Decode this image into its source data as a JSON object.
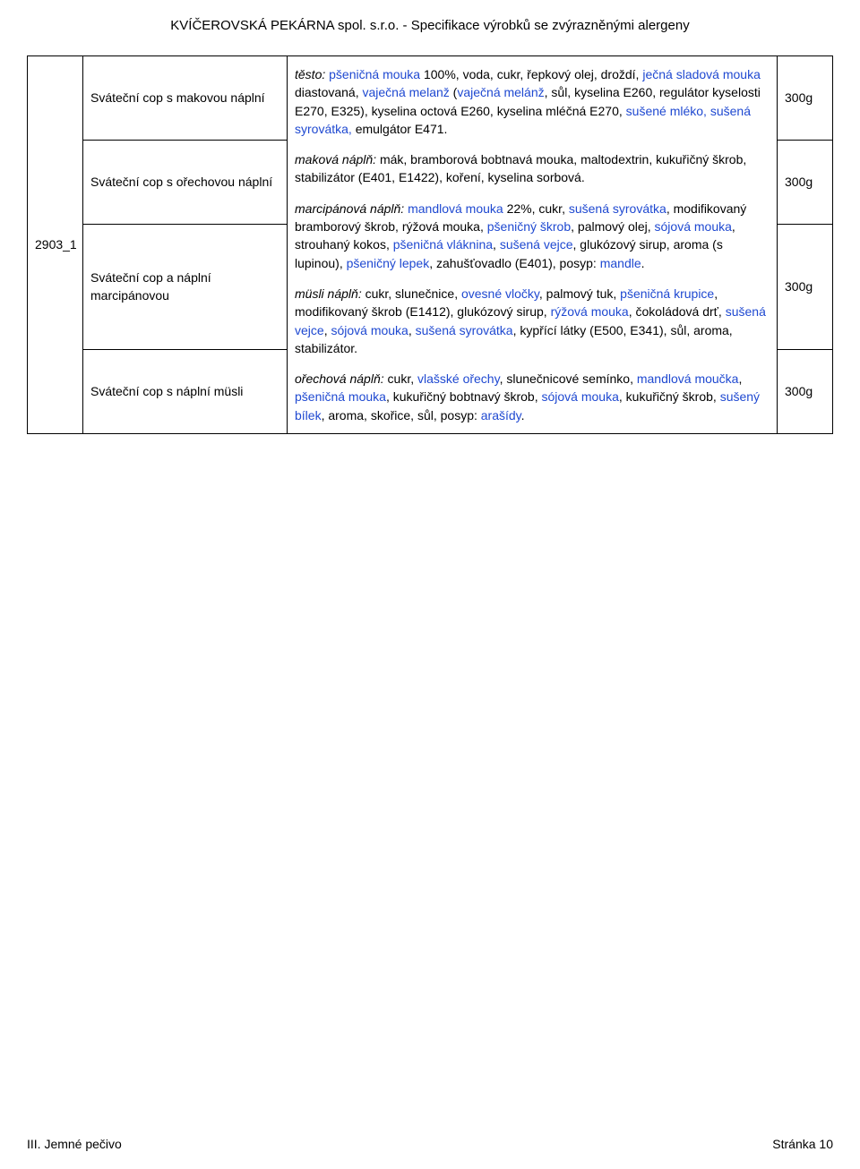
{
  "header": "KVÍČEROVSKÁ PEKÁRNA spol. s.r.o. - Specifikace výrobků se zvýrazněnými alergeny",
  "id": "2903_1",
  "rows": [
    {
      "name": "Sváteční cop s makovou náplní",
      "weight": "300g"
    },
    {
      "name": "Sváteční cop s ořechovou náplní",
      "weight": "300g"
    },
    {
      "name": "Sváteční cop a náplní marcipánovou",
      "weight": "300g"
    },
    {
      "name": "Sváteční cop s náplní müsli",
      "weight": "300g"
    }
  ],
  "desc": {
    "testo": {
      "label": "těsto:",
      "p1a": "pšeničná mouka",
      "p1b": " 100%, voda, cukr, řepkový olej, droždí, ",
      "p1c": "ječná sladová mouka",
      "p1d": " diastovaná, ",
      "p1e": "vaječná melanž",
      "p1f": " (",
      "p1g": "vaječná melánž",
      "p1h": ", sůl, kyselina E260, regulátor kyselosti E270, E325), kyselina octová E260, kyselina mléčná E270, ",
      "p1i": "sušené mléko, sušená syrovátka,",
      "p1j": " emulgátor E471."
    },
    "makova": {
      "label": "maková náplň:",
      "p": " mák, bramborová bobtnavá mouka, maltodextrin, kukuřičný škrob, stabilizátor (E401, E1422), koření, kyselina sorbová."
    },
    "marcipan": {
      "label": "marcipánová náplň:",
      "p1": "mandlová mouka",
      "p2": " 22%, cukr, ",
      "p3": "sušená syrovátka",
      "p4": ", modifikovaný bramborový škrob, rýžová mouka, ",
      "p5": "pšeničný škrob",
      "p6": ", palmový olej, ",
      "p7": "sójová mouka",
      "p8": ", strouhaný kokos, ",
      "p9": "pšeničná vláknina",
      "p10": ", ",
      "p11": "sušená vejce",
      "p12": ", glukózový sirup, aroma (s lupinou), ",
      "p13": "pšeničný lepek",
      "p14": ", zahušťovadlo (E401), posyp: ",
      "p15": "mandle",
      "p16": "."
    },
    "musli": {
      "label": "müsli náplň:",
      "p1": " cukr, slunečnice, ",
      "p2": "ovesné vločky",
      "p3": ", palmový tuk, ",
      "p4": "pšeničná krupice",
      "p5": ", modifikovaný škrob (E1412), glukózový sirup, ",
      "p6": "rýžová mouka",
      "p7": ", čokoládová drť, ",
      "p8": "sušená vejce",
      "p9": ", ",
      "p10": "sójová mouka",
      "p11": ", ",
      "p12": "sušená syrovátka",
      "p13": ", kypřící látky (E500, E341), sůl, aroma, stabilizátor."
    },
    "orech": {
      "label": "ořechová náplň:",
      "p1": " cukr, ",
      "p2": "vlašské ořechy",
      "p3": ", slunečnicové semínko, ",
      "p4": "mandlová moučka",
      "p5": ", ",
      "p6": "pšeničná mouka",
      "p7": ", kukuřičný bobtnavý  škrob, ",
      "p8": "sójová mouka",
      "p9": ", kukuřičný škrob, ",
      "p10": "sušený bílek",
      "p11": ", aroma, skořice, sůl, posyp: ",
      "p12": "arašídy",
      "p13": "."
    }
  },
  "footer": {
    "left": "III. Jemné pečivo",
    "right": "Stránka 10"
  }
}
